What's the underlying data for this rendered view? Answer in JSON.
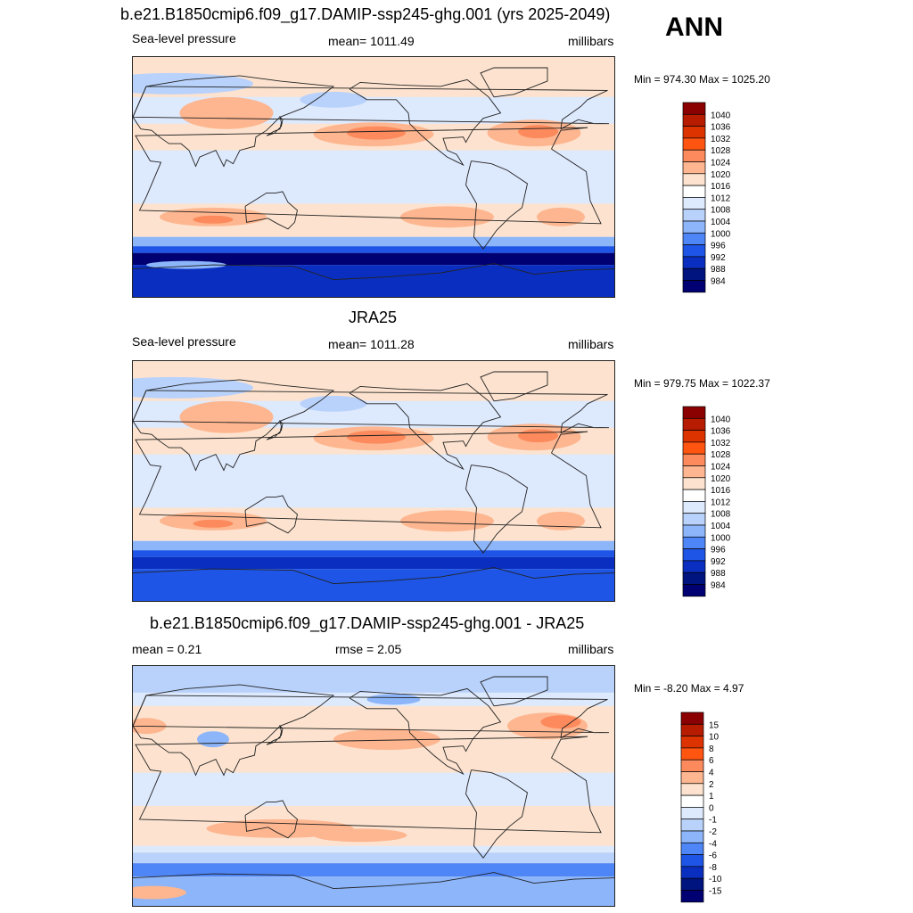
{
  "top_right_label": "ANN",
  "chart_data": [
    {
      "type": "heatmap",
      "title": "b.e21.B1850cmip6.f09_g17.DAMIP-ssp245-ghg.001 (yrs 2025-2049)",
      "left_label": "Sea-level pressure",
      "center_label": "mean= 1011.49",
      "right_label": "millibars",
      "minmax": "Min = 974.30 Max = 1025.20",
      "field": "slp_model",
      "colorbar": {
        "levels": [
          "1040",
          "1036",
          "1032",
          "1028",
          "1024",
          "1020",
          "1016",
          "1012",
          "1008",
          "1004",
          "1000",
          "996",
          "992",
          "988",
          "984"
        ],
        "colors": [
          "#8b0000",
          "#b81c00",
          "#dd3300",
          "#ff5511",
          "#fc8a5c",
          "#fdb690",
          "#fde3cf",
          "#ffffff",
          "#dde9fd",
          "#b9d2fb",
          "#8cb5fa",
          "#4f86f7",
          "#1e55e6",
          "#0a2fc0",
          "#00147f",
          "#000072"
        ]
      }
    },
    {
      "type": "heatmap",
      "title": "JRA25",
      "left_label": "Sea-level pressure",
      "center_label": "mean= 1011.28",
      "right_label": "millibars",
      "minmax": "Min = 979.75 Max = 1022.37",
      "field": "slp_obs",
      "colorbar": {
        "levels": [
          "1040",
          "1036",
          "1032",
          "1028",
          "1024",
          "1020",
          "1016",
          "1012",
          "1008",
          "1004",
          "1000",
          "996",
          "992",
          "988",
          "984"
        ],
        "colors": [
          "#8b0000",
          "#b81c00",
          "#dd3300",
          "#ff5511",
          "#fc8a5c",
          "#fdb690",
          "#fde3cf",
          "#ffffff",
          "#dde9fd",
          "#b9d2fb",
          "#8cb5fa",
          "#4f86f7",
          "#1e55e6",
          "#0a2fc0",
          "#00147f",
          "#000072"
        ]
      }
    },
    {
      "type": "heatmap",
      "title": "b.e21.B1850cmip6.f09_g17.DAMIP-ssp245-ghg.001 - JRA25",
      "left_label": "mean =   0.21",
      "center_label": "rmse =   2.05",
      "right_label": "millibars",
      "minmax": "Min =  -8.20 Max =   4.97",
      "field": "slp_diff",
      "colorbar": {
        "levels": [
          "15",
          "10",
          "8",
          "6",
          "4",
          "2",
          "1",
          "0",
          "-1",
          "-2",
          "-4",
          "-6",
          "-8",
          "-10",
          "-15"
        ],
        "colors": [
          "#8b0000",
          "#b81c00",
          "#dd3300",
          "#ff5511",
          "#fc8a5c",
          "#fdb690",
          "#fde3cf",
          "#ffffff",
          "#dde9fd",
          "#b9d2fb",
          "#8cb5fa",
          "#4f86f7",
          "#1e55e6",
          "#0a2fc0",
          "#00147f",
          "#000072"
        ]
      }
    }
  ]
}
